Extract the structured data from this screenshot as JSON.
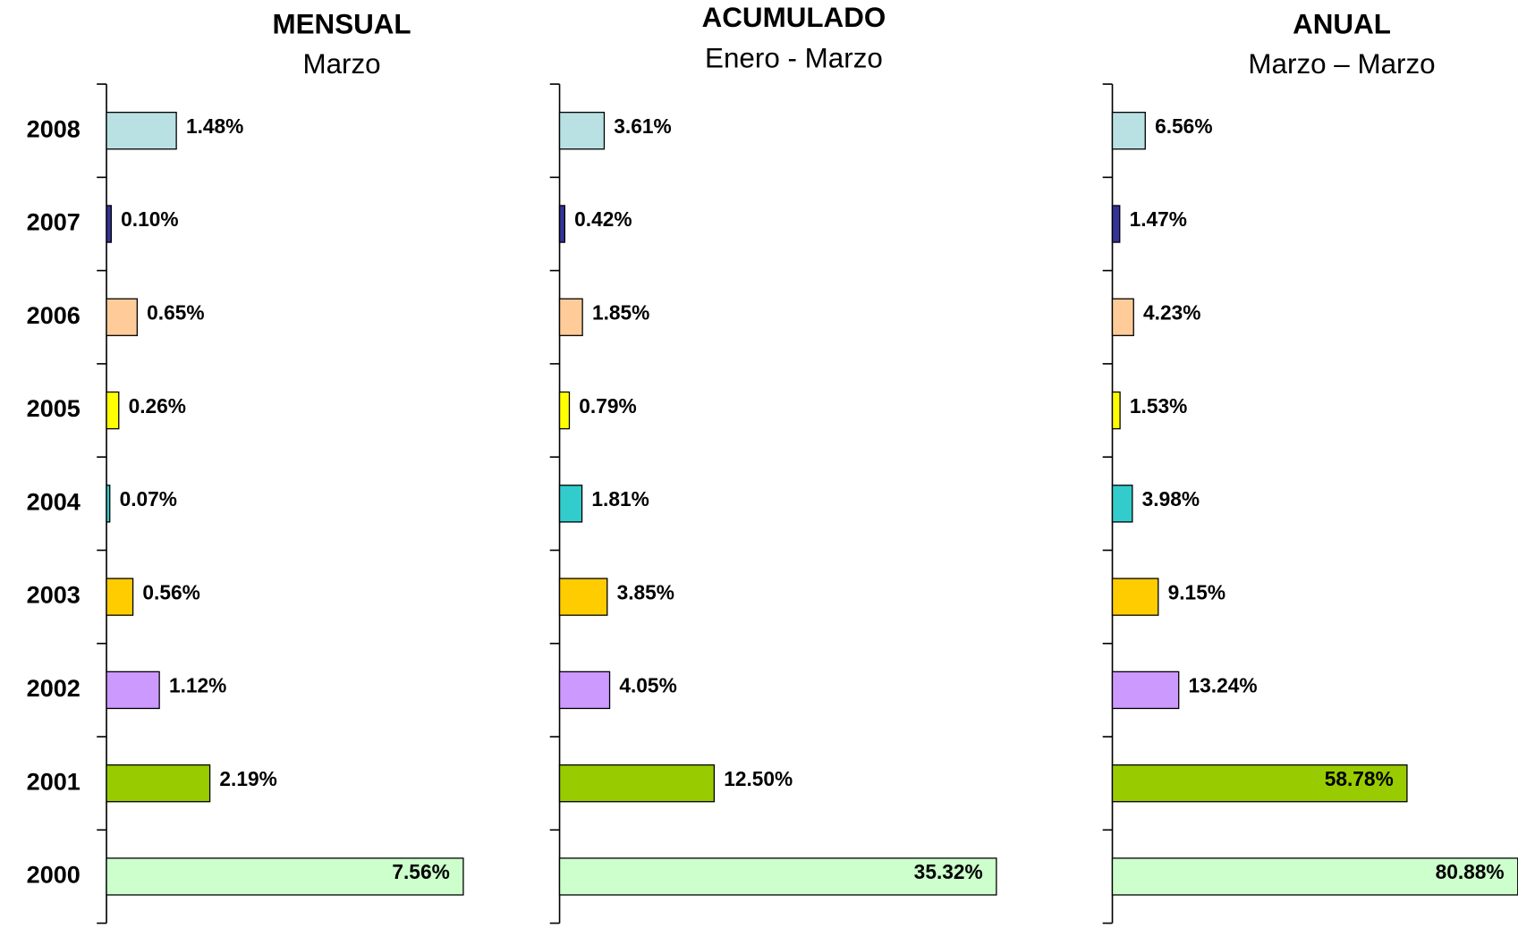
{
  "chart_data": [
    {
      "type": "bar",
      "orientation": "horizontal",
      "title": "MENSUAL",
      "subtitle": "Marzo",
      "categories": [
        "2008",
        "2007",
        "2006",
        "2005",
        "2004",
        "2003",
        "2002",
        "2001",
        "2000"
      ],
      "values": [
        1.48,
        0.1,
        0.65,
        0.26,
        0.07,
        0.56,
        1.12,
        2.19,
        7.56
      ],
      "value_labels": [
        "1.48%",
        "0.10%",
        "0.65%",
        "0.26%",
        "0.07%",
        "0.56%",
        "1.12%",
        "2.19%",
        "7.56%"
      ],
      "colors": [
        "#b9e1e3",
        "#333399",
        "#ffcc99",
        "#ffff00",
        "#33cccc",
        "#ffcc00",
        "#cc99ff",
        "#99cc00",
        "#ccffcc"
      ],
      "xlim": [
        0,
        8
      ]
    },
    {
      "type": "bar",
      "orientation": "horizontal",
      "title": "ACUMULADO",
      "subtitle": "Enero - Marzo",
      "values": [
        3.61,
        0.42,
        1.85,
        0.79,
        1.81,
        3.85,
        4.05,
        12.5,
        35.32
      ],
      "value_labels": [
        "3.61%",
        "0.42%",
        "1.85%",
        "0.79%",
        "1.81%",
        "3.85%",
        "4.05%",
        "12.50%",
        "35.32%"
      ],
      "colors": [
        "#b9e1e3",
        "#333399",
        "#ffcc99",
        "#ffff00",
        "#33cccc",
        "#ffcc00",
        "#cc99ff",
        "#99cc00",
        "#ccffcc"
      ],
      "xlim": [
        0,
        40
      ]
    },
    {
      "type": "bar",
      "orientation": "horizontal",
      "title": "ANUAL",
      "subtitle": "Marzo – Marzo",
      "values": [
        6.56,
        1.47,
        4.23,
        1.53,
        3.98,
        9.15,
        13.24,
        58.78,
        80.88
      ],
      "value_labels": [
        "6.56%",
        "1.47%",
        "4.23%",
        "1.53%",
        "3.98%",
        "9.15%",
        "13.24%",
        "58.78%",
        "80.88%"
      ],
      "colors": [
        "#b9e1e3",
        "#333399",
        "#ffcc99",
        "#ffff00",
        "#33cccc",
        "#ffcc00",
        "#cc99ff",
        "#99cc00",
        "#ccffcc"
      ],
      "xlim": [
        0,
        90
      ]
    }
  ]
}
